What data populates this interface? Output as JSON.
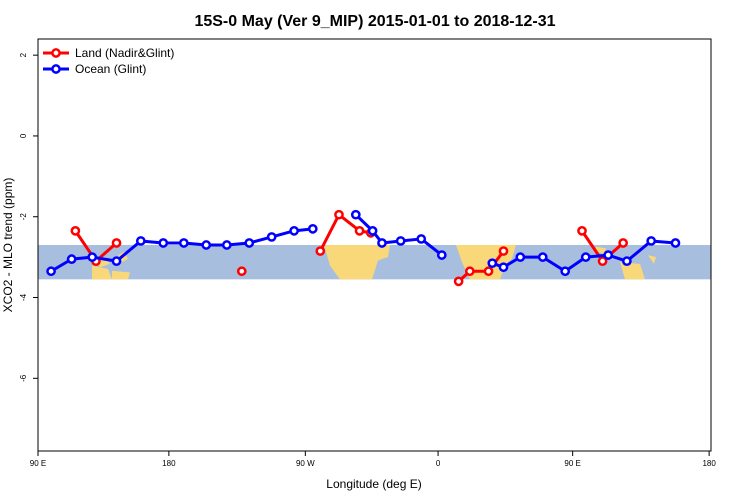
{
  "chart_data": {
    "type": "line",
    "title": "15S-0 May (Ver 9_MIP)   2015-01-01 to 2018-12-31",
    "xlabel": "Longitude (deg E)",
    "ylabel": "XCO2 - MLO trend (ppm)",
    "xlim": [
      90,
      450
    ],
    "ylim": [
      -7.8,
      2.4
    ],
    "x_ticks": [
      {
        "value": 90,
        "label": "90 E"
      },
      {
        "value": 160,
        "label": "180"
      },
      {
        "value": 233,
        "label": "90 W"
      },
      {
        "value": 304,
        "label": "0"
      },
      {
        "value": 376,
        "label": "90 E"
      },
      {
        "value": 449,
        "label": "180"
      }
    ],
    "y_ticks": [
      {
        "value": 2,
        "label": "2"
      },
      {
        "value": 0,
        "label": "0"
      },
      {
        "value": -2,
        "label": "-2"
      },
      {
        "value": -4,
        "label": "-4"
      },
      {
        "value": -6,
        "label": "-6"
      }
    ],
    "map_band": {
      "ymin": -3.55,
      "ymax": -2.7,
      "ocean_color": "#a8bede",
      "land_color": "#f8d878"
    },
    "legend_position": "top-left",
    "series": [
      {
        "name": "Land (Nadir&Glint)",
        "color": "#ff0000",
        "segments": [
          [
            [
              110,
              -2.35
            ],
            [
              121,
              -3.1
            ],
            [
              132,
              -2.65
            ]
          ],
          [
            [
              199,
              -3.35
            ]
          ],
          [
            [
              241,
              -2.85
            ],
            [
              251,
              -1.95
            ],
            [
              262,
              -2.35
            ],
            [
              268,
              -2.4
            ]
          ],
          [
            [
              315,
              -3.6
            ],
            [
              321,
              -3.35
            ],
            [
              331,
              -3.35
            ],
            [
              339,
              -2.85
            ]
          ],
          [
            [
              381,
              -2.35
            ],
            [
              392,
              -3.1
            ],
            [
              403,
              -2.65
            ]
          ]
        ]
      },
      {
        "name": "Ocean (Glint)",
        "color": "#0000ff",
        "segments": [
          [
            [
              97,
              -3.35
            ],
            [
              108,
              -3.05
            ],
            [
              119,
              -3.0
            ],
            [
              132,
              -3.1
            ],
            [
              145,
              -2.6
            ],
            [
              157,
              -2.65
            ],
            [
              168,
              -2.65
            ],
            [
              180,
              -2.7
            ],
            [
              191,
              -2.7
            ],
            [
              203,
              -2.65
            ],
            [
              215,
              -2.5
            ],
            [
              227,
              -2.35
            ],
            [
              237,
              -2.3
            ]
          ],
          [
            [
              260,
              -1.95
            ],
            [
              269,
              -2.35
            ],
            [
              274,
              -2.65
            ],
            [
              284,
              -2.6
            ],
            [
              295,
              -2.55
            ],
            [
              306,
              -2.95
            ]
          ],
          [
            [
              333,
              -3.15
            ],
            [
              339,
              -3.25
            ],
            [
              348,
              -3.0
            ],
            [
              360,
              -3.0
            ],
            [
              372,
              -3.35
            ],
            [
              383,
              -3.0
            ],
            [
              395,
              -2.95
            ],
            [
              405,
              -3.1
            ],
            [
              418,
              -2.6
            ],
            [
              431,
              -2.65
            ]
          ]
        ]
      }
    ]
  }
}
